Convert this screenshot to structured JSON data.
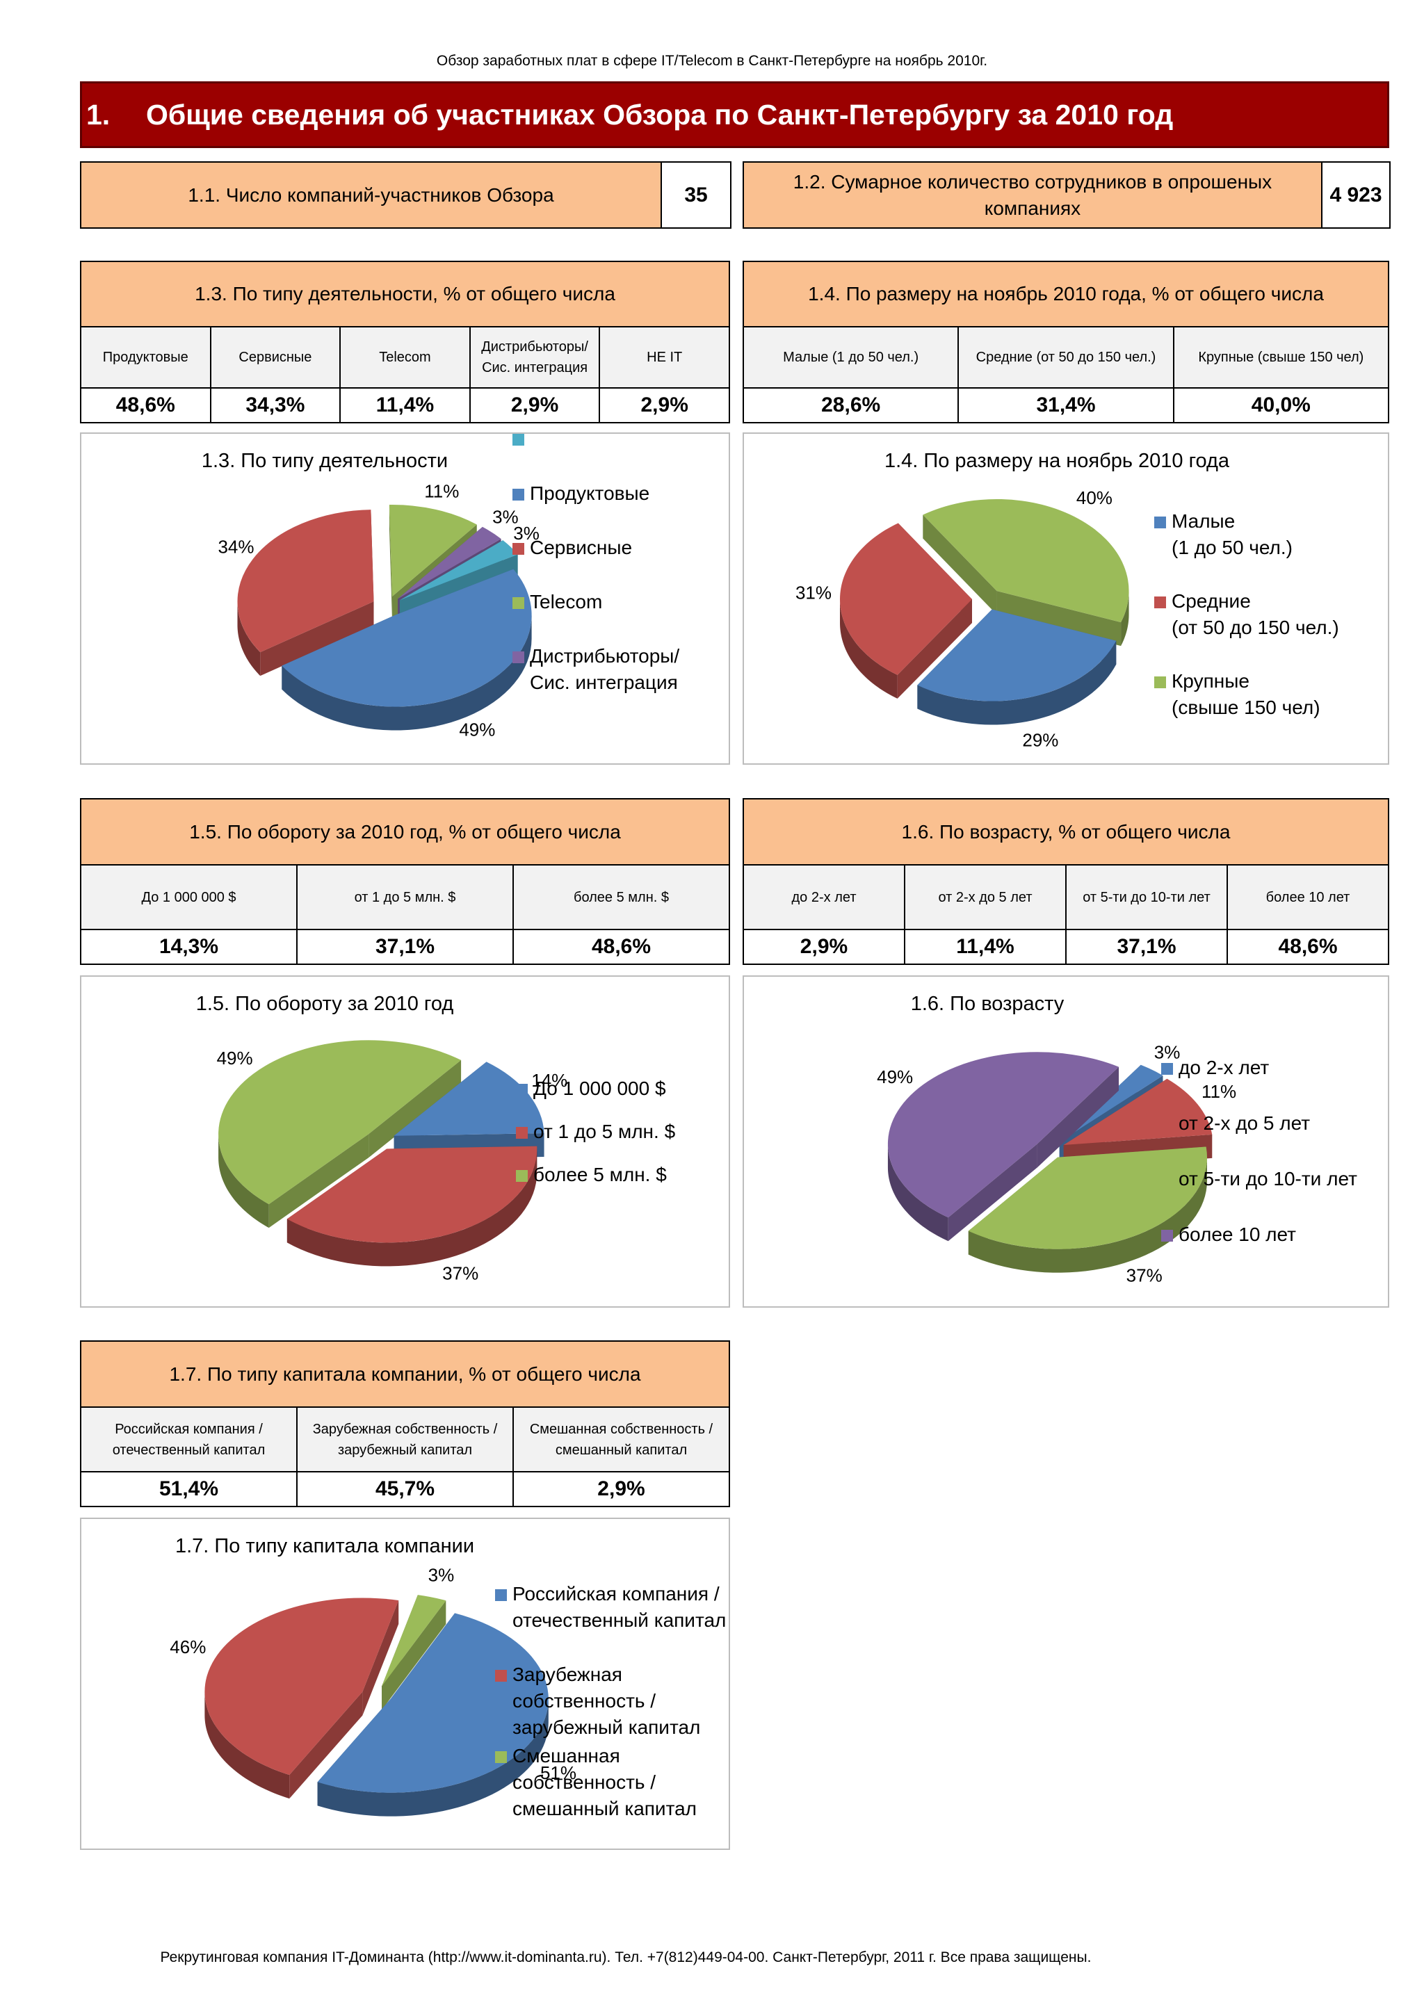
{
  "header": "Обзор заработных плат в сфере IT/Telecom в Санкт-Петербурге на ноябрь 2010г.",
  "section": {
    "number": "1.",
    "title": "Общие сведения об участниках Обзора по Санкт-Петербургу за 2010 год"
  },
  "stat1": {
    "label": "1.1. Число компаний-участников Обзора",
    "value": "35"
  },
  "stat2": {
    "label": "1.2. Сумарное количество сотрудников в опрошеных компаниях",
    "value": "4 923"
  },
  "t13": {
    "title": "1.3. По типу деятельности, % от общего числа",
    "cols": [
      "Продуктовые",
      "Сервисные",
      "Telecom",
      "Дистрибьюторы/ Сис. интеграция",
      "НЕ IT"
    ],
    "values": [
      "48,6%",
      "34,3%",
      "11,4%",
      "2,9%",
      "2,9%"
    ]
  },
  "t14": {
    "title": "1.4. По размеру на ноябрь 2010 года, % от общего числа",
    "cols": [
      "Малые (1 до 50 чел.)",
      "Средние (от 50 до 150 чел.)",
      "Крупные (свыше 150 чел)"
    ],
    "values": [
      "28,6%",
      "31,4%",
      "40,0%"
    ]
  },
  "t15": {
    "title": "1.5. По обороту за 2010 год, % от общего числа",
    "cols": [
      "До 1 000 000 $",
      "от 1 до 5 млн. $",
      "более 5 млн. $"
    ],
    "values": [
      "14,3%",
      "37,1%",
      "48,6%"
    ]
  },
  "t16": {
    "title": "1.6. По возрасту, % от общего числа",
    "cols": [
      "до 2-х лет",
      "от 2-х до 5 лет",
      "от 5-ти до 10-ти лет",
      "более 10 лет"
    ],
    "values": [
      "2,9%",
      "11,4%",
      "37,1%",
      "48,6%"
    ]
  },
  "t17": {
    "title": "1.7. По типу капитала компании, % от общего числа",
    "cols": [
      "Российская компания / отечественный капитал",
      "Зарубежная собственность / зарубежный капитал",
      "Смешанная собственность / смешанный капитал"
    ],
    "values": [
      "51,4%",
      "45,7%",
      "2,9%"
    ]
  },
  "colors": {
    "blue": "#4f81bd",
    "red": "#c0504d",
    "green": "#9bbb59",
    "purple": "#8064a2",
    "teal": "#4bacc6"
  },
  "chart_data": [
    {
      "type": "pie",
      "title": "1.3. По типу деятельности",
      "legend": "right",
      "series": [
        {
          "name": "Продуктовые",
          "value": 49,
          "label": "49%",
          "color": "#4f81bd"
        },
        {
          "name": "Сервисные",
          "value": 34,
          "label": "34%",
          "color": "#c0504d"
        },
        {
          "name": "Telecom",
          "value": 11,
          "label": "11%",
          "color": "#9bbb59"
        },
        {
          "name": "Дистрибьюторы/ Сис. интеграция",
          "value": 3,
          "label": "3%",
          "color": "#8064a2"
        },
        {
          "name": "НЕ IT",
          "value": 3,
          "label": "3%",
          "color": "#4bacc6"
        }
      ]
    },
    {
      "type": "pie",
      "title": "1.4. По размеру на ноябрь 2010 года",
      "legend": "right",
      "series": [
        {
          "name": "Малые (1 до 50 чел.)",
          "value": 29,
          "label": "29%",
          "color": "#4f81bd"
        },
        {
          "name": "Средние (от 50 до 150 чел.)",
          "value": 31,
          "label": "31%",
          "color": "#c0504d"
        },
        {
          "name": "Крупные (свыше 150 чел)",
          "value": 40,
          "label": "40%",
          "color": "#9bbb59"
        }
      ]
    },
    {
      "type": "pie",
      "title": "1.5. По обороту за 2010 год",
      "legend": "right",
      "series": [
        {
          "name": "До 1 000 000 $",
          "value": 14,
          "label": "14%",
          "color": "#4f81bd"
        },
        {
          "name": "от 1 до 5 млн. $",
          "value": 37,
          "label": "37%",
          "color": "#c0504d"
        },
        {
          "name": "более 5 млн. $",
          "value": 49,
          "label": "49%",
          "color": "#9bbb59"
        }
      ]
    },
    {
      "type": "pie",
      "title": "1.6. По возрасту",
      "legend": "right",
      "series": [
        {
          "name": "до 2-х лет",
          "value": 3,
          "label": "3%",
          "color": "#4f81bd"
        },
        {
          "name": "от 2-х до 5 лет",
          "value": 11,
          "label": "11%",
          "color": "#c0504d"
        },
        {
          "name": "от 5-ти до 10-ти лет",
          "value": 37,
          "label": "37%",
          "color": "#9bbb59"
        },
        {
          "name": "более 10 лет",
          "value": 49,
          "label": "49%",
          "color": "#8064a2"
        }
      ]
    },
    {
      "type": "pie",
      "title": "1.7. По типу капитала компании",
      "legend": "right",
      "series": [
        {
          "name": "Российская компания / отечественный капитал",
          "value": 51,
          "label": "51%",
          "color": "#4f81bd"
        },
        {
          "name": "Зарубежная собственность / зарубежный капитал",
          "value": 46,
          "label": "46%",
          "color": "#c0504d"
        },
        {
          "name": "Смешанная собственность / смешанный капитал",
          "value": 3,
          "label": "3%",
          "color": "#9bbb59"
        }
      ]
    }
  ],
  "footer": "Рекрутинговая компания IT-Доминанта (http://www.it-dominanta.ru). Тел. +7(812)449-04-00. Санкт-Петербург, 2011 г. Все права защищены."
}
